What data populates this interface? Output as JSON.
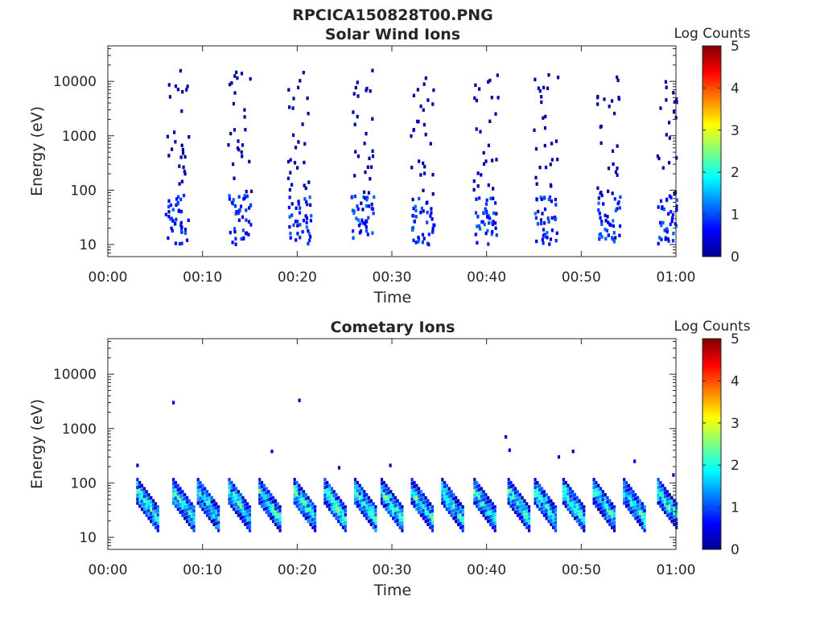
{
  "figure": {
    "filename": "RPCICA150828T00.PNG"
  },
  "chart_data": [
    {
      "type": "heatmap",
      "title": "Solar Wind Ions",
      "xlabel": "Time",
      "ylabel": "Energy (eV)",
      "x_ticks": [
        "00:00",
        "00:10",
        "00:20",
        "00:30",
        "00:40",
        "00:50",
        "01:00"
      ],
      "xlim_minutes": [
        0,
        60
      ],
      "y_scale": "log",
      "ylim": [
        6,
        45000
      ],
      "y_ticks": [
        {
          "value": 10,
          "label": "10"
        },
        {
          "value": 100,
          "label": "100"
        },
        {
          "value": 1000,
          "label": "1000"
        },
        {
          "value": 10000,
          "label": "10000"
        }
      ],
      "colorbar": {
        "label": "Log Counts",
        "range": [
          0,
          5
        ],
        "ticks": [
          "0",
          "1",
          "2",
          "3",
          "4",
          "5"
        ]
      },
      "colormap": "jet",
      "pattern": {
        "sweep_period_minutes": 6.5,
        "sweep_starts_minutes": [
          6.2,
          12.8,
          19.2,
          25.8,
          32.2,
          38.8,
          45.2,
          51.8,
          58.2
        ],
        "low_energy_band_eV": [
          10,
          80
        ],
        "band_log_counts": [
          0.3,
          1.2
        ],
        "sparse_high_energy_eV": [
          80,
          16000
        ],
        "sparse_log_counts": 0.2
      }
    },
    {
      "type": "heatmap",
      "title": "Cometary Ions",
      "xlabel": "Time",
      "ylabel": "Energy (eV)",
      "x_ticks": [
        "00:00",
        "00:10",
        "00:20",
        "00:30",
        "00:40",
        "00:50",
        "01:00"
      ],
      "xlim_minutes": [
        0,
        60
      ],
      "y_scale": "log",
      "ylim": [
        6,
        45000
      ],
      "y_ticks": [
        {
          "value": 10,
          "label": "10"
        },
        {
          "value": 100,
          "label": "100"
        },
        {
          "value": 1000,
          "label": "1000"
        },
        {
          "value": 10000,
          "label": "10000"
        }
      ],
      "colorbar": {
        "label": "Log Counts",
        "range": [
          0,
          5
        ],
        "ticks": [
          "0",
          "1",
          "2",
          "3",
          "4",
          "5"
        ]
      },
      "colormap": "jet",
      "pattern": {
        "burst_starts_minutes": [
          3.0,
          6.8,
          9.4,
          12.7,
          15.9,
          19.6,
          22.8,
          26.0,
          28.8,
          32.0,
          35.2,
          38.6,
          42.2,
          45.0,
          48.0,
          51.2,
          54.4,
          58.0
        ],
        "burst_energy_eV": [
          12,
          200
        ],
        "peak_log_counts": [
          1.5,
          2.8
        ],
        "isolated_points": [
          {
            "t": 3.0,
            "e": 210,
            "c": 0.3
          },
          {
            "t": 6.8,
            "e": 3000,
            "c": 0.3
          },
          {
            "t": 20.1,
            "e": 3300,
            "c": 0.3
          },
          {
            "t": 17.2,
            "e": 380,
            "c": 0.3
          },
          {
            "t": 24.3,
            "e": 190,
            "c": 0.3
          },
          {
            "t": 29.7,
            "e": 210,
            "c": 0.3
          },
          {
            "t": 41.9,
            "e": 700,
            "c": 0.3
          },
          {
            "t": 42.3,
            "e": 400,
            "c": 0.3
          },
          {
            "t": 47.5,
            "e": 300,
            "c": 0.3
          },
          {
            "t": 49.0,
            "e": 380,
            "c": 0.3
          },
          {
            "t": 55.5,
            "e": 250,
            "c": 0.3
          },
          {
            "t": 59.6,
            "e": 140,
            "c": 0.3
          }
        ]
      }
    }
  ]
}
